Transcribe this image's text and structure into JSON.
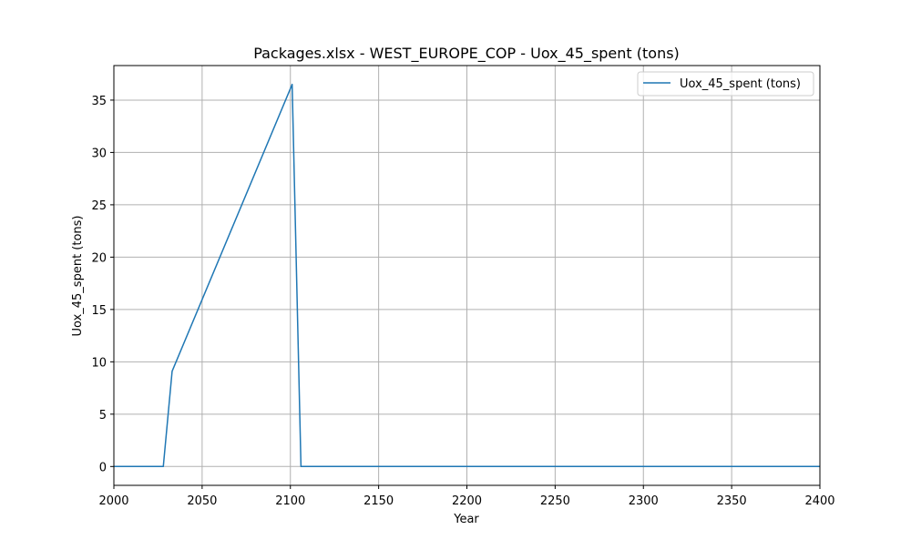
{
  "chart_data": {
    "type": "line",
    "title": "Packages.xlsx - WEST_EUROPE_COP - Uox_45_spent (tons)",
    "xlabel": "Year",
    "ylabel": "Uox_45_spent (tons)",
    "xlim": [
      2000,
      2400
    ],
    "ylim": [
      -1.8,
      38.3
    ],
    "xticks": [
      2000,
      2050,
      2100,
      2150,
      2200,
      2250,
      2300,
      2350,
      2400
    ],
    "yticks": [
      0,
      5,
      10,
      15,
      20,
      25,
      30,
      35
    ],
    "grid": true,
    "legend_position": "top-right",
    "series": [
      {
        "name": "Uox_45_spent (tons)",
        "color": "#1f77b4",
        "x": [
          2000,
          2028,
          2033,
          2101,
          2106,
          2400
        ],
        "y": [
          0,
          0,
          9.1,
          36.5,
          0,
          0
        ]
      }
    ]
  }
}
